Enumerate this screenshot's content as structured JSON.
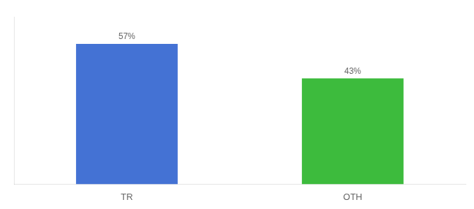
{
  "chart_data": {
    "type": "bar",
    "categories": [
      "TR",
      "OTH"
    ],
    "values": [
      57,
      43
    ],
    "value_labels": [
      "57%",
      "43%"
    ],
    "colors": [
      "#4472d4",
      "#3dbb3d"
    ],
    "ylim": [
      0,
      68
    ],
    "grid": false,
    "data_labels": true,
    "tick_labels": "x"
  }
}
